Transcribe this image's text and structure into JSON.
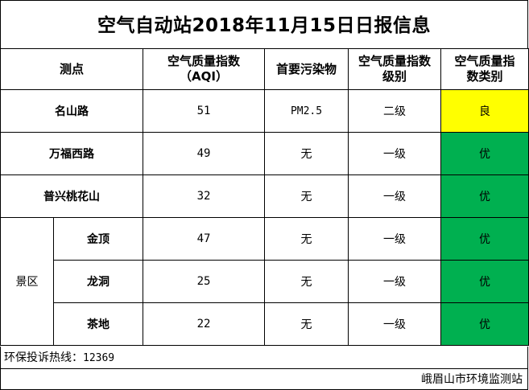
{
  "title": "空气自动站2018年11月15日日报信息",
  "headers": {
    "site": "测点",
    "aqi_line1": "空气质量指数",
    "aqi_line2": "（AQI）",
    "pollutant": "首要污染物",
    "level_line1": "空气质量指数",
    "level_line2": "级别",
    "category_line1": "空气质量指",
    "category_line2": "数类别"
  },
  "rows": [
    {
      "site": "名山路",
      "aqi": "51",
      "pollutant": "PM2.5",
      "level": "二级",
      "category": "良",
      "color": "#ffff00"
    },
    {
      "site": "万福西路",
      "aqi": "49",
      "pollutant": "无",
      "level": "一级",
      "category": "优",
      "color": "#00b050"
    },
    {
      "site": "普兴桃花山",
      "aqi": "32",
      "pollutant": "无",
      "level": "一级",
      "category": "优",
      "color": "#00b050"
    }
  ],
  "scenic_group": {
    "label": "景区",
    "rows": [
      {
        "site": "金顶",
        "aqi": "47",
        "pollutant": "无",
        "level": "一级",
        "category": "优",
        "color": "#00b050"
      },
      {
        "site": "龙洞",
        "aqi": "25",
        "pollutant": "无",
        "level": "一级",
        "category": "优",
        "color": "#00b050"
      },
      {
        "site": "茶地",
        "aqi": "22",
        "pollutant": "无",
        "level": "一级",
        "category": "优",
        "color": "#00b050"
      }
    ]
  },
  "footer": {
    "hotline_label": "环保投诉热线：",
    "hotline_number": "12369",
    "organization": "峨眉山市环境监测站"
  }
}
